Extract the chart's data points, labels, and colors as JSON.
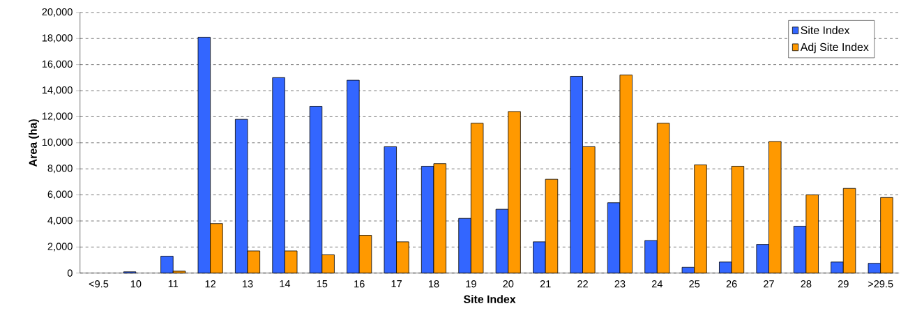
{
  "chart_data": {
    "type": "bar",
    "xlabel": "Site Index",
    "ylabel": "Area (ha)",
    "categories": [
      "<9.5",
      "10",
      "11",
      "12",
      "13",
      "14",
      "15",
      "16",
      "17",
      "18",
      "19",
      "20",
      "21",
      "22",
      "23",
      "24",
      "25",
      "26",
      "27",
      "28",
      "29",
      ">29.5"
    ],
    "series": [
      {
        "name": "Site Index",
        "color": "#3366ff",
        "values": [
          null,
          100,
          1300,
          18100,
          11800,
          15000,
          12800,
          14800,
          9700,
          8200,
          4200,
          4900,
          2400,
          15100,
          5400,
          2500,
          450,
          850,
          2200,
          3600,
          850,
          750
        ]
      },
      {
        "name": "Adj Site Index",
        "color": "#ff9900",
        "values": [
          null,
          null,
          150,
          3800,
          1700,
          1700,
          1400,
          2900,
          2400,
          8400,
          11500,
          12400,
          7200,
          9700,
          15200,
          11500,
          8300,
          8200,
          10100,
          6000,
          6500,
          5800
        ]
      }
    ],
    "ylim": [
      0,
      20000
    ],
    "yticks": [
      {
        "value": 0,
        "label": "0"
      },
      {
        "value": 2000,
        "label": "2,000"
      },
      {
        "value": 4000,
        "label": "4,000"
      },
      {
        "value": 6000,
        "label": "6,000"
      },
      {
        "value": 8000,
        "label": "8,000"
      },
      {
        "value": 10000,
        "label": "10,000"
      },
      {
        "value": 12000,
        "label": "12,000"
      },
      {
        "value": 14000,
        "label": "14,000"
      },
      {
        "value": 16000,
        "label": "16,000"
      },
      {
        "value": 18000,
        "label": "18,000"
      },
      {
        "value": 20000,
        "label": "20,000"
      }
    ],
    "grid": "y",
    "legend": "top right"
  }
}
